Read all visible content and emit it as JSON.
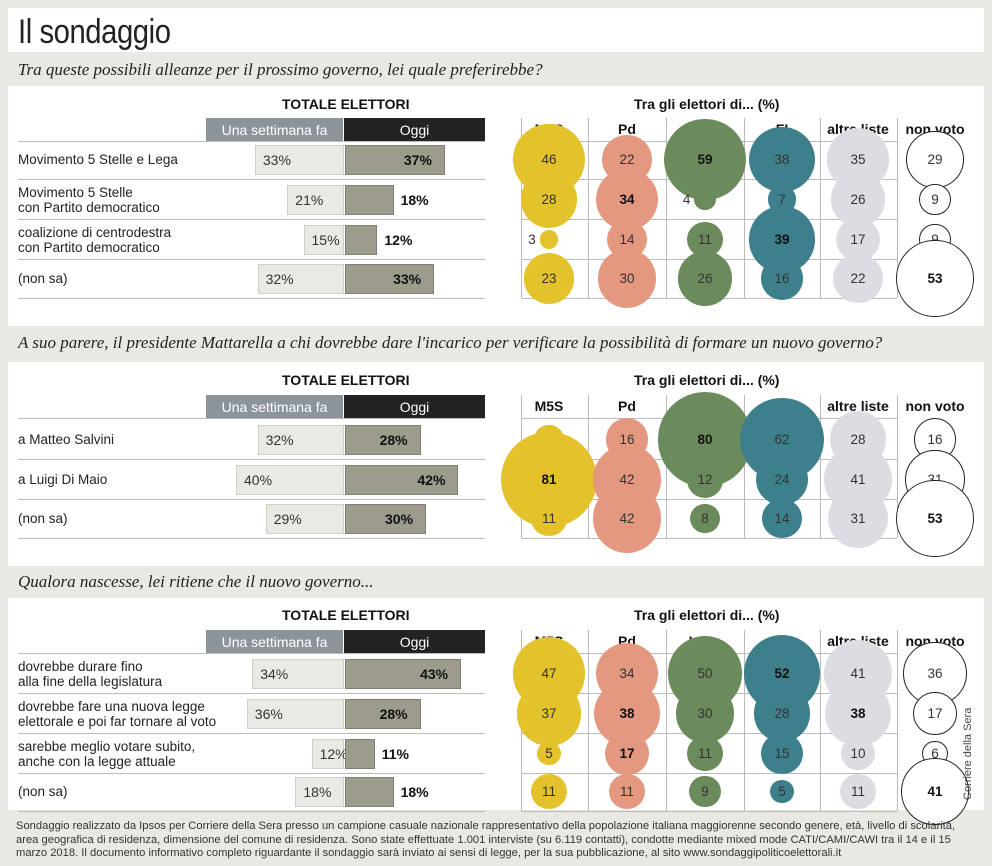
{
  "title": "Il sondaggio",
  "labels": {
    "totale": "TOTALE ELETTORI",
    "week": "Una settimana fa",
    "today": "Oggi",
    "tra": "Tra gli elettori di... (%)",
    "columns": [
      "M5S",
      "Pd",
      "Lega",
      "FI",
      "altre liste",
      "non voto"
    ]
  },
  "colors": {
    "M5S": "#e3c22b",
    "Pd": "#e49880",
    "Lega": "#6b8b5c",
    "FI": "#3e7f8c",
    "altre liste": "#dcdde2",
    "non voto": "#ffffff"
  },
  "chart_data": [
    {
      "type": "table",
      "title": "Tra queste possibili alleanze per il prossimo governo, lei quale preferirebbe?",
      "rows": [
        {
          "label": "Movimento 5 Stelle e Lega",
          "week": 33,
          "today": 37,
          "M5S": 46,
          "Pd": 22,
          "Lega": 59,
          "FI": 38,
          "altre liste": 35,
          "non voto": 29
        },
        {
          "label": "Movimento 5 Stelle\ncon Partito democratico",
          "week": 21,
          "today": 18,
          "M5S": 28,
          "Pd": 34,
          "Lega": 4,
          "FI": 7,
          "altre liste": 26,
          "non voto": 9
        },
        {
          "label": "coalizione di centrodestra\ncon Partito democratico",
          "week": 15,
          "today": 12,
          "M5S": 3,
          "Pd": 14,
          "Lega": 11,
          "FI": 39,
          "altre liste": 17,
          "non voto": 9
        },
        {
          "label": "(non sa)",
          "week": 32,
          "today": 33,
          "M5S": 23,
          "Pd": 30,
          "Lega": 26,
          "FI": 16,
          "altre liste": 22,
          "non voto": 53
        }
      ]
    },
    {
      "type": "table",
      "title": "A suo parere, il presidente Mattarella a chi dovrebbe dare l'incarico per verificare la possibilità di formare un nuovo governo?",
      "rows": [
        {
          "label": "a Matteo Salvini",
          "week": 32,
          "today": 28,
          "M5S": 8,
          "Pd": 16,
          "Lega": 80,
          "FI": 62,
          "altre liste": 28,
          "non voto": 16
        },
        {
          "label": "a Luigi Di Maio",
          "week": 40,
          "today": 42,
          "M5S": 81,
          "Pd": 42,
          "Lega": 12,
          "FI": 24,
          "altre liste": 41,
          "non voto": 31
        },
        {
          "label": "(non sa)",
          "week": 29,
          "today": 30,
          "M5S": 11,
          "Pd": 42,
          "Lega": 8,
          "FI": 14,
          "altre liste": 31,
          "non voto": 53
        }
      ]
    },
    {
      "type": "table",
      "title": "Qualora nascesse, lei ritiene che il  nuovo governo...",
      "rows": [
        {
          "label": "dovrebbe durare fino\nalla fine della legislatura",
          "week": 34,
          "today": 43,
          "M5S": 47,
          "Pd": 34,
          "Lega": 50,
          "FI": 52,
          "altre liste": 41,
          "non voto": 36
        },
        {
          "label": "dovrebbe fare una nuova legge\nelettorale e poi far tornare al voto",
          "week": 36,
          "today": 28,
          "M5S": 37,
          "Pd": 38,
          "Lega": 30,
          "FI": 28,
          "altre liste": 38,
          "non voto": 17
        },
        {
          "label": "sarebbe meglio votare subito,\nanche con la legge attuale",
          "week": 12,
          "today": 11,
          "M5S": 5,
          "Pd": 17,
          "Lega": 11,
          "FI": 15,
          "altre liste": 10,
          "non voto": 6
        },
        {
          "label": "(non sa)",
          "week": 18,
          "today": 18,
          "M5S": 11,
          "Pd": 11,
          "Lega": 9,
          "FI": 5,
          "altre liste": 11,
          "non voto": 41
        }
      ]
    }
  ],
  "footnote": "Sondaggio realizzato da Ipsos per Corriere della Sera presso un campione casuale nazionale rappresentativo della popolazione italiana maggiorenne secondo genere, età, livello di scolarità, area geografica di residenza, dimensione del comune di residenza. Sono state effettuate 1.001 interviste (su 6.119 contatti), condotte mediante mixed mode CATI/CAMI/CAWI tra il 14 e il 15 marzo 2018. Il documento informativo completo riguardante il sondaggio sarà inviato ai sensi di legge, per la sua pubblicazione, al sito www.sondaggipoliticoelettorali.it",
  "credit": "Corriere della Sera"
}
